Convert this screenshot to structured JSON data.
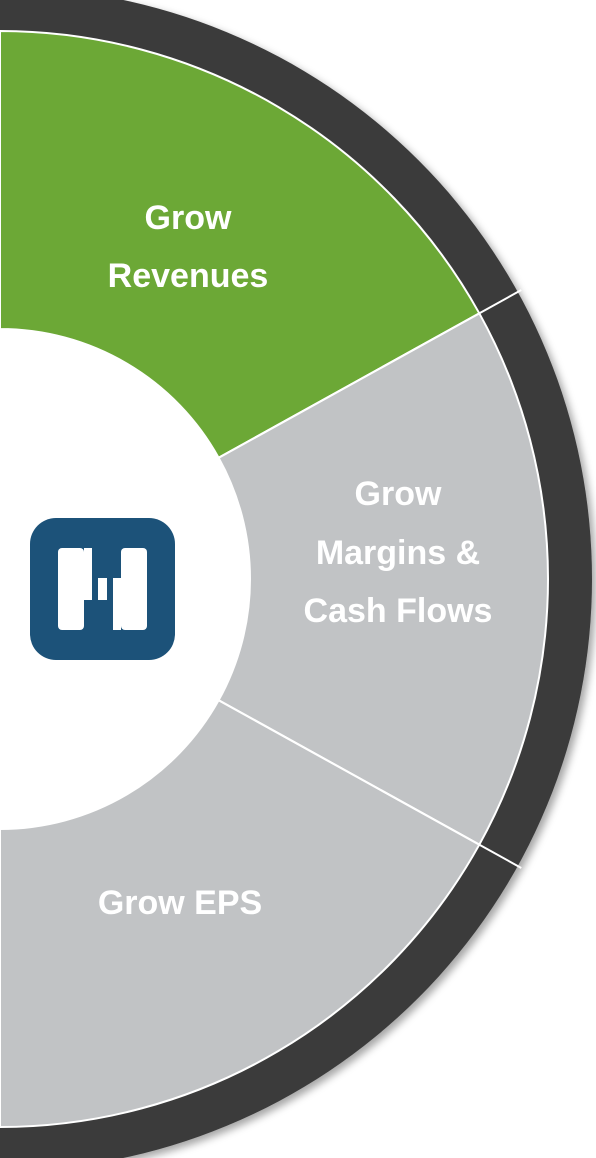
{
  "segments": [
    {
      "lines": [
        "Grow",
        "Revenues"
      ]
    },
    {
      "lines": [
        "Grow",
        "Margins    &",
        "Cash Flows"
      ]
    },
    {
      "lines": [
        "Grow EPS"
      ]
    }
  ]
}
